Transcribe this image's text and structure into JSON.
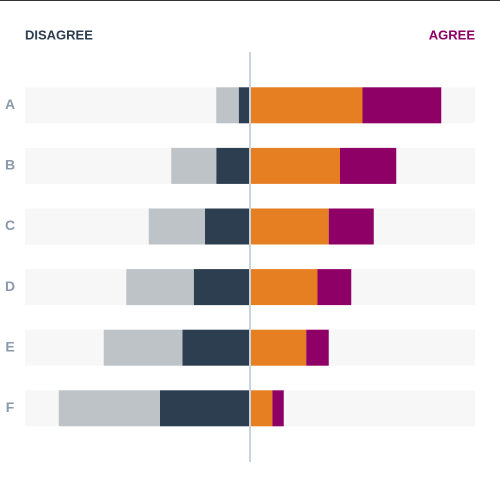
{
  "chart_data": {
    "type": "diverging-bar",
    "left_label": "DISAGREE",
    "right_label": "AGREE",
    "categories": [
      "A",
      "B",
      "C",
      "D",
      "E",
      "F"
    ],
    "series": [
      {
        "color": "#2c3e50",
        "side": "left",
        "values": [
          5,
          15,
          20,
          25,
          30,
          40
        ]
      },
      {
        "color": "#bdc3c7",
        "side": "left",
        "values": [
          10,
          20,
          25,
          30,
          35,
          45
        ]
      },
      {
        "color": "#e67e22",
        "side": "right",
        "values": [
          50,
          40,
          35,
          30,
          25,
          10
        ]
      },
      {
        "color": "#8e0066",
        "side": "right",
        "values": [
          35,
          25,
          20,
          15,
          10,
          5
        ]
      }
    ],
    "xlim": [
      -100,
      100
    ]
  }
}
